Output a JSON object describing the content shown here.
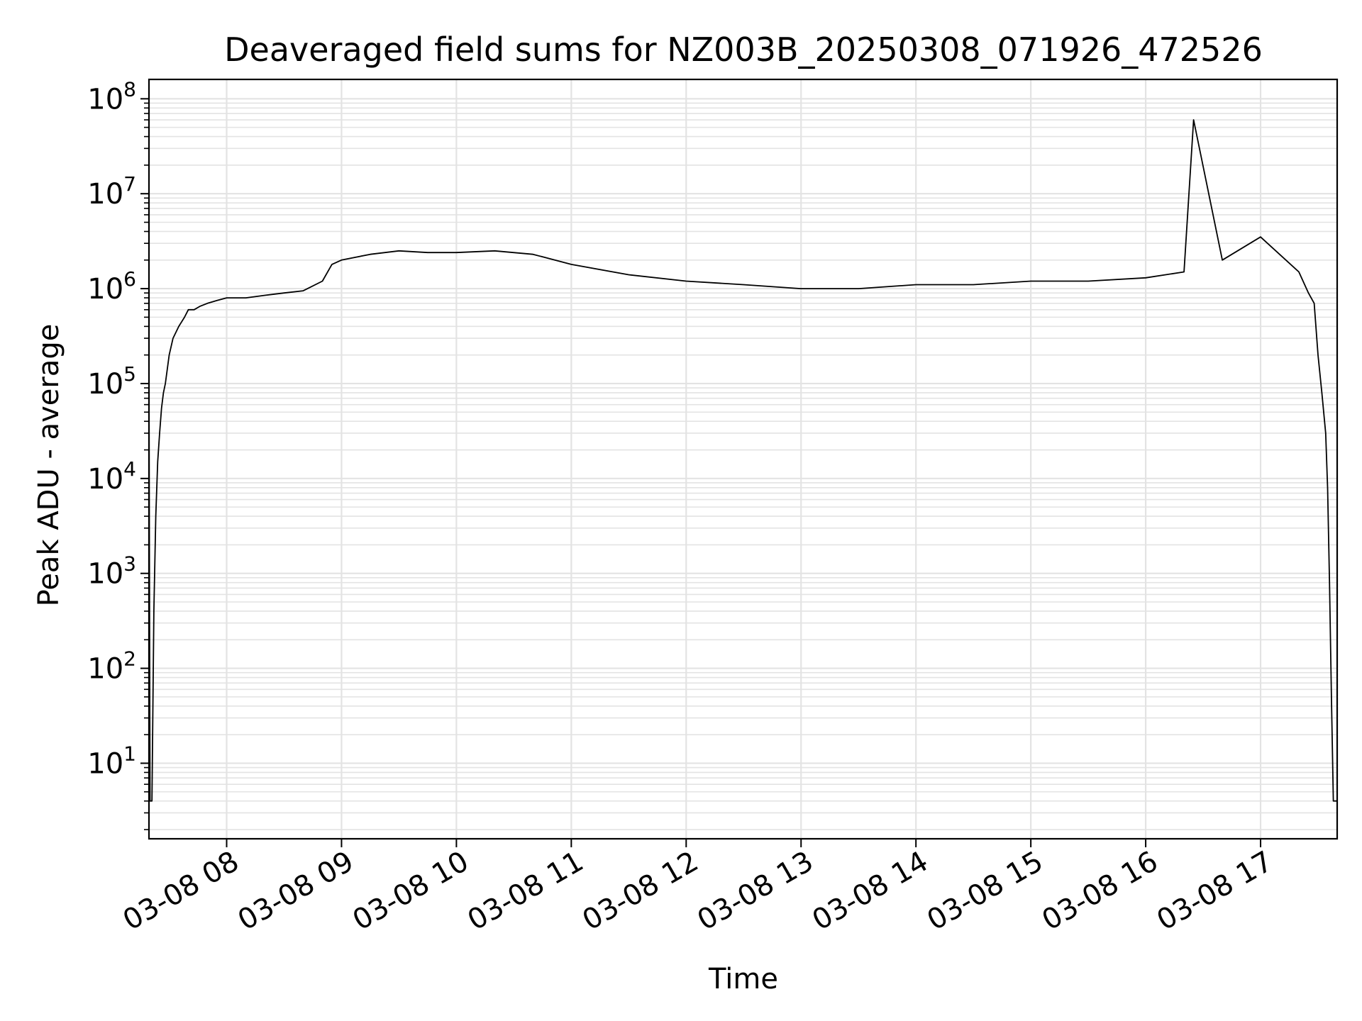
{
  "chart_data": {
    "type": "line",
    "title": "Deaveraged field sums for NZ003B_20250308_071926_472526",
    "xlabel": "Time",
    "ylabel": "Peak ADU - average",
    "yscale": "log",
    "ylim": [
      1.6,
      160000000
    ],
    "xlim": [
      "2025-03-08 07:19:26",
      "2025-03-08 17:40:00"
    ],
    "x_tick_labels": [
      "03-08 08",
      "03-08 09",
      "03-08 10",
      "03-08 11",
      "03-08 12",
      "03-08 13",
      "03-08 14",
      "03-08 15",
      "03-08 16",
      "03-08 17"
    ],
    "y_ticks": [
      {
        "base": "10",
        "exp": "1",
        "value": 10
      },
      {
        "base": "10",
        "exp": "2",
        "value": 100
      },
      {
        "base": "10",
        "exp": "3",
        "value": 1000
      },
      {
        "base": "10",
        "exp": "4",
        "value": 10000
      },
      {
        "base": "10",
        "exp": "5",
        "value": 100000
      },
      {
        "base": "10",
        "exp": "6",
        "value": 1000000
      },
      {
        "base": "10",
        "exp": "7",
        "value": 10000000
      },
      {
        "base": "10",
        "exp": "8",
        "value": 100000000
      }
    ],
    "grid": true,
    "legend": "none",
    "line_color": "#000000",
    "grid_color": "#e3e3e3",
    "series": [
      {
        "x": [
          "2025-03-08 07:19:26",
          "2025-03-08 07:20:00",
          "2025-03-08 07:21:00",
          "2025-03-08 07:22:00",
          "2025-03-08 07:23:00",
          "2025-03-08 07:24:00",
          "2025-03-08 07:25:00",
          "2025-03-08 07:26:00",
          "2025-03-08 07:27:00",
          "2025-03-08 07:28:00",
          "2025-03-08 07:30:00",
          "2025-03-08 07:32:00",
          "2025-03-08 07:35:00",
          "2025-03-08 07:38:00",
          "2025-03-08 07:40:00",
          "2025-03-08 07:43:00",
          "2025-03-08 07:46:00",
          "2025-03-08 07:50:00",
          "2025-03-08 07:55:00",
          "2025-03-08 08:00:00",
          "2025-03-08 08:10:00",
          "2025-03-08 08:20:00",
          "2025-03-08 08:30:00",
          "2025-03-08 08:40:00",
          "2025-03-08 08:50:00",
          "2025-03-08 08:55:00",
          "2025-03-08 09:00:00",
          "2025-03-08 09:15:00",
          "2025-03-08 09:30:00",
          "2025-03-08 09:45:00",
          "2025-03-08 10:00:00",
          "2025-03-08 10:20:00",
          "2025-03-08 10:40:00",
          "2025-03-08 11:00:00",
          "2025-03-08 11:30:00",
          "2025-03-08 12:00:00",
          "2025-03-08 12:30:00",
          "2025-03-08 13:00:00",
          "2025-03-08 13:30:00",
          "2025-03-08 14:00:00",
          "2025-03-08 14:30:00",
          "2025-03-08 15:00:00",
          "2025-03-08 15:30:00",
          "2025-03-08 16:00:00",
          "2025-03-08 16:20:00",
          "2025-03-08 16:25:00",
          "2025-03-08 16:40:00",
          "2025-03-08 17:00:00",
          "2025-03-08 17:20:00",
          "2025-03-08 17:25:00",
          "2025-03-08 17:28:00",
          "2025-03-08 17:30:00",
          "2025-03-08 17:32:00",
          "2025-03-08 17:34:00",
          "2025-03-08 17:35:00",
          "2025-03-08 17:36:00",
          "2025-03-08 17:37:00",
          "2025-03-08 17:38:00",
          "2025-03-08 17:39:00",
          "2025-03-08 17:40:00"
        ],
        "y": [
          80000,
          4,
          4,
          400,
          4000,
          15000,
          30000,
          55000,
          80000,
          100000,
          200000,
          300000,
          400000,
          500000,
          600000,
          600000,
          650000,
          700000,
          750000,
          800000,
          800000,
          850000,
          900000,
          950000,
          1200000,
          1800000,
          2000000,
          2300000,
          2500000,
          2400000,
          2400000,
          2500000,
          2300000,
          1800000,
          1400000,
          1200000,
          1100000,
          1000000,
          1000000,
          1100000,
          1100000,
          1200000,
          1200000,
          1300000,
          1500000,
          60000000,
          2000000,
          3500000,
          1500000,
          900000,
          700000,
          200000,
          80000,
          30000,
          8000,
          800,
          50,
          4,
          4,
          4
        ]
      }
    ]
  }
}
